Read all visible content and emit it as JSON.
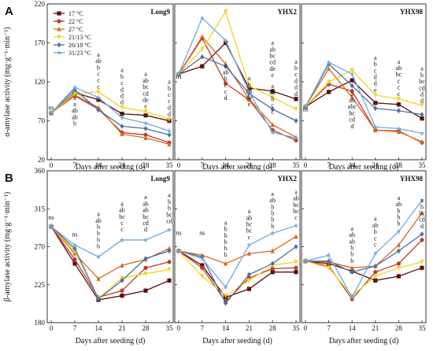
{
  "series_styles": [
    {
      "name": "17 °C",
      "color": "#5b0f0f",
      "marker": "square"
    },
    {
      "name": "22 °C",
      "color": "#c0392b",
      "marker": "circle"
    },
    {
      "name": "27 °C",
      "color": "#d2691e",
      "marker": "triangle"
    },
    {
      "name": "21/13 °C",
      "color": "#f2d51c",
      "marker": "triangle-down"
    },
    {
      "name": "26/18 °C",
      "color": "#4a6fa5",
      "marker": "diamond"
    },
    {
      "name": "31/23 °C",
      "color": "#6fa8dc",
      "marker": "star"
    }
  ],
  "xlabel": "Days after seeding (d)",
  "chart_data": [
    {
      "type": "line",
      "panel_letter": "A",
      "title": "Long9",
      "ylabel": "α-amylase activity (mg·g⁻¹·min⁻¹)",
      "ylim": [
        20,
        220
      ],
      "yticks": [
        20,
        70,
        120,
        170,
        220
      ],
      "x": [
        0,
        7,
        14,
        21,
        28,
        35
      ],
      "series": [
        {
          "name": "17 °C",
          "values": [
            80,
            106,
            97,
            79,
            77,
            70
          ]
        },
        {
          "name": "22 °C",
          "values": [
            80,
            102,
            85,
            55,
            52,
            42
          ]
        },
        {
          "name": "27 °C",
          "values": [
            80,
            103,
            87,
            53,
            48,
            40
          ]
        },
        {
          "name": "21/13 °C",
          "values": [
            80,
            105,
            107,
            87,
            82,
            72
          ]
        },
        {
          "name": "26/18 °C",
          "values": [
            80,
            110,
            84,
            63,
            60,
            52
          ]
        },
        {
          "name": "31/23 °C",
          "values": [
            80,
            113,
            100,
            74,
            67,
            57
          ]
        }
      ],
      "annotations": [
        {
          "x": 0,
          "y": 84,
          "labels": [
            "ns"
          ]
        },
        {
          "x": 7,
          "y": 97,
          "labels": [
            "a",
            "a",
            "ab",
            "ab",
            "b"
          ]
        },
        {
          "x": 14,
          "y": 111,
          "labels": [
            "a",
            "ab",
            "b",
            "c",
            "c",
            "c"
          ],
          "above": true
        },
        {
          "x": 21,
          "y": 91,
          "labels": [
            "a",
            "b",
            "c",
            "d",
            "d",
            "d"
          ],
          "above": true
        },
        {
          "x": 28,
          "y": 86,
          "labels": [
            "a",
            "ab",
            "bc",
            "cd",
            "de",
            "e"
          ],
          "above": true
        },
        {
          "x": 35,
          "y": 76,
          "labels": [
            "a",
            "b",
            "c",
            "c",
            "d",
            "d"
          ],
          "above": true
        }
      ]
    },
    {
      "type": "line",
      "panel_letter": "",
      "title": "YHX2",
      "ylim": [
        20,
        220
      ],
      "yticks": [
        20,
        70,
        120,
        170,
        220
      ],
      "x": [
        0,
        7,
        14,
        21,
        28,
        35
      ],
      "series": [
        {
          "name": "17 °C",
          "values": [
            130,
            140,
            170,
            112,
            108,
            98
          ]
        },
        {
          "name": "22 °C",
          "values": [
            130,
            176,
            118,
            97,
            58,
            45
          ]
        },
        {
          "name": "27 °C",
          "values": [
            130,
            178,
            143,
            98,
            65,
            49
          ]
        },
        {
          "name": "21/13 °C",
          "values": [
            130,
            162,
            210,
            115,
            100,
            85
          ]
        },
        {
          "name": "26/18 °C",
          "values": [
            130,
            152,
            140,
            105,
            85,
            70
          ]
        },
        {
          "name": "31/23 °C",
          "values": [
            130,
            202,
            173,
            107,
            55,
            48
          ]
        }
      ],
      "annotations": [
        {
          "x": 0,
          "y": 124,
          "labels": [
            "ns"
          ]
        },
        {
          "x": 14,
          "y": 138,
          "labels": [
            "a",
            "ab",
            "b",
            "c",
            "c",
            "d"
          ]
        },
        {
          "x": 21,
          "y": 122,
          "labels": [
            "a",
            "b",
            "cd",
            "de",
            "e"
          ]
        },
        {
          "x": 28,
          "y": 112,
          "labels": [
            "a",
            "ab",
            "b",
            "c",
            "c"
          ]
        },
        {
          "x": 28,
          "y": 126,
          "labels": [
            "a",
            "ab",
            "bc",
            "cd",
            "de",
            "e"
          ],
          "above": true
        },
        {
          "x": 35,
          "y": 102,
          "labels": [
            "a",
            "b",
            "c",
            "d",
            "d",
            "d"
          ],
          "above": true
        }
      ]
    },
    {
      "type": "line",
      "panel_letter": "",
      "title": "YHX98",
      "ylim": [
        20,
        220
      ],
      "yticks": [
        20,
        70,
        120,
        170,
        220
      ],
      "x": [
        0,
        7,
        14,
        21,
        28,
        35
      ],
      "series": [
        {
          "name": "17 °C",
          "values": [
            88,
            107,
            122,
            93,
            91,
            73
          ]
        },
        {
          "name": "22 °C",
          "values": [
            88,
            117,
            108,
            58,
            57,
            42
          ]
        },
        {
          "name": "27 °C",
          "values": [
            88,
            137,
            100,
            58,
            56,
            43
          ]
        },
        {
          "name": "21/13 °C",
          "values": [
            88,
            120,
            135,
            103,
            98,
            90
          ]
        },
        {
          "name": "26/18 °C",
          "values": [
            88,
            143,
            115,
            86,
            83,
            78
          ]
        },
        {
          "name": "31/23 °C",
          "values": [
            88,
            145,
            130,
            62,
            60,
            54
          ]
        }
      ],
      "annotations": [
        {
          "x": 0,
          "y": 82,
          "labels": [
            "ns"
          ]
        },
        {
          "x": 14,
          "y": 102,
          "labels": [
            "a",
            "ab",
            "abc",
            "bc",
            "cd",
            "d"
          ]
        },
        {
          "x": 21,
          "y": 107,
          "labels": [
            "a",
            "b",
            "c",
            "d",
            "d",
            "e"
          ],
          "above": true
        },
        {
          "x": 28,
          "y": 102,
          "labels": [
            "a",
            "ab",
            "bc",
            "c",
            "c",
            "c"
          ],
          "above": true
        },
        {
          "x": 35,
          "y": 93,
          "labels": [
            "a",
            "b",
            "bc",
            "cd",
            "d",
            "d"
          ],
          "above": true
        }
      ]
    },
    {
      "type": "line",
      "panel_letter": "B",
      "title": "Long9",
      "ylabel": "β-amylase activity (mg·g⁻¹·min⁻¹)",
      "ylim": [
        180,
        360
      ],
      "yticks": [
        180,
        225,
        270,
        315,
        360
      ],
      "x": [
        0,
        7,
        14,
        21,
        28,
        35
      ],
      "series": [
        {
          "name": "17 °C",
          "values": [
            294,
            250,
            207,
            212,
            218,
            230
          ]
        },
        {
          "name": "22 °C",
          "values": [
            294,
            255,
            210,
            218,
            245,
            252
          ]
        },
        {
          "name": "27 °C",
          "values": [
            294,
            262,
            232,
            248,
            255,
            268
          ]
        },
        {
          "name": "21/13 °C",
          "values": [
            294,
            265,
            209,
            233,
            238,
            243
          ]
        },
        {
          "name": "26/18 °C",
          "values": [
            294,
            268,
            208,
            230,
            256,
            265
          ]
        },
        {
          "name": "31/23 °C",
          "values": [
            294,
            272,
            258,
            278,
            278,
            290
          ]
        }
      ],
      "annotations": [
        {
          "x": 0,
          "y": 302,
          "labels": [
            "ns"
          ]
        },
        {
          "x": 7,
          "y": 282,
          "labels": [
            "ns"
          ]
        },
        {
          "x": 14,
          "y": 268,
          "labels": [
            "a",
            "ab",
            "b",
            "b",
            "b",
            "b"
          ],
          "above": true
        },
        {
          "x": 21,
          "y": 288,
          "labels": [
            "a",
            "ab",
            "bc",
            "c",
            "c"
          ],
          "above": true
        },
        {
          "x": 28,
          "y": 288,
          "labels": [
            "a",
            "ab",
            "ab",
            "bc",
            "cd",
            "d"
          ],
          "above": true
        },
        {
          "x": 35,
          "y": 298,
          "labels": [
            "a",
            "b",
            "b",
            "bc",
            "cd"
          ],
          "above": true
        }
      ]
    },
    {
      "type": "line",
      "panel_letter": "",
      "title": "YHX2",
      "ylim": [
        180,
        360
      ],
      "yticks": [
        180,
        225,
        270,
        315,
        360
      ],
      "x": [
        0,
        7,
        14,
        21,
        28,
        35
      ],
      "series": [
        {
          "name": "17 °C",
          "values": [
            265,
            248,
            210,
            220,
            240,
            240
          ]
        },
        {
          "name": "22 °C",
          "values": [
            265,
            245,
            205,
            233,
            244,
            245
          ]
        },
        {
          "name": "27 °C",
          "values": [
            265,
            260,
            250,
            262,
            265,
            282
          ]
        },
        {
          "name": "21/13 °C",
          "values": [
            265,
            235,
            212,
            230,
            248,
            252
          ]
        },
        {
          "name": "26/18 °C",
          "values": [
            265,
            258,
            203,
            237,
            250,
            270
          ]
        },
        {
          "name": "31/23 °C",
          "values": [
            265,
            256,
            222,
            272,
            286,
            295
          ]
        }
      ],
      "annotations": [
        {
          "x": 0,
          "y": 284,
          "labels": [
            "ns"
          ]
        },
        {
          "x": 7,
          "y": 284,
          "labels": [
            "ns"
          ]
        },
        {
          "x": 14,
          "y": 258,
          "labels": [
            "a",
            "b",
            "b",
            "b",
            "b",
            "b"
          ],
          "above": true
        },
        {
          "x": 21,
          "y": 279,
          "labels": [
            "a",
            "ab",
            "bc",
            "bc",
            "c"
          ],
          "above": true
        },
        {
          "x": 28,
          "y": 292,
          "labels": [
            "a",
            "ab",
            "b",
            "b",
            "b",
            "b"
          ],
          "above": true
        },
        {
          "x": 35,
          "y": 302,
          "labels": [
            "a",
            "ab",
            "bc",
            "bc",
            "c"
          ],
          "above": true
        }
      ]
    },
    {
      "type": "line",
      "panel_letter": "",
      "title": "YHX98",
      "ylim": [
        180,
        360
      ],
      "yticks": [
        180,
        225,
        270,
        315,
        360
      ],
      "x": [
        0,
        7,
        14,
        21,
        28,
        35
      ],
      "series": [
        {
          "name": "17 °C",
          "values": [
            253,
            250,
            241,
            230,
            235,
            245
          ]
        },
        {
          "name": "22 °C",
          "values": [
            253,
            247,
            208,
            240,
            250,
            278
          ]
        },
        {
          "name": "27 °C",
          "values": [
            253,
            252,
            245,
            247,
            272,
            310
          ]
        },
        {
          "name": "21/13 °C",
          "values": [
            253,
            245,
            212,
            235,
            245,
            252
          ]
        },
        {
          "name": "26/18 °C",
          "values": [
            253,
            253,
            240,
            247,
            265,
            285
          ]
        },
        {
          "name": "31/23 °C",
          "values": [
            253,
            260,
            210,
            262,
            288,
            325
          ]
        }
      ],
      "annotations": [
        {
          "x": 14,
          "y": 251,
          "labels": [
            "a",
            "ab",
            "ab",
            "b",
            "b",
            "b"
          ],
          "above": true
        },
        {
          "x": 21,
          "y": 270,
          "labels": [
            "a",
            "ab",
            "b",
            "c",
            "c"
          ],
          "above": true
        },
        {
          "x": 28,
          "y": 295,
          "labels": [
            "a",
            "ab",
            "b",
            "b",
            "b"
          ],
          "above": true
        },
        {
          "x": 35,
          "y": 292,
          "labels": [
            "a",
            "b",
            "bc",
            "cd",
            "d"
          ],
          "above": true
        }
      ]
    }
  ]
}
